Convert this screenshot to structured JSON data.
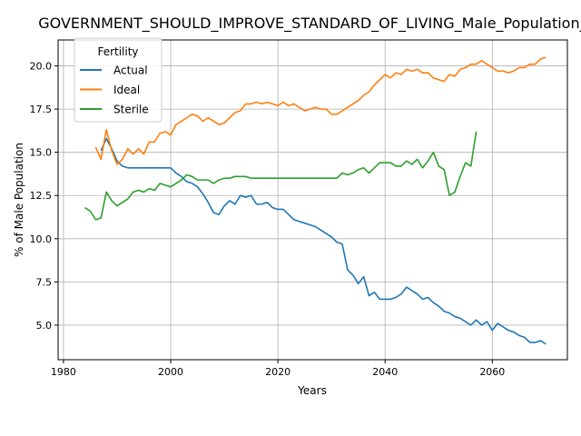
{
  "chart_data": {
    "type": "line",
    "title": "GOVERNMENT_SHOULD_IMPROVE_STANDARD_OF_LIVING_Male_Population_sc",
    "xlabel": "Years",
    "ylabel": "% of Male Population",
    "xlim": [
      1979,
      2074
    ],
    "ylim": [
      3.0,
      21.5
    ],
    "xticks": [
      1980,
      2000,
      2020,
      2040,
      2060
    ],
    "yticks": [
      5.0,
      7.5,
      10.0,
      12.5,
      15.0,
      17.5,
      20.0
    ],
    "xtick_labels": [
      "1980",
      "2000",
      "2020",
      "2040",
      "2060"
    ],
    "ytick_labels": [
      "5.0",
      "7.5",
      "10.0",
      "12.5",
      "15.0",
      "17.5",
      "20.0"
    ],
    "grid": true,
    "legend": {
      "title": "Fertility",
      "placement": "top-left"
    },
    "series": [
      {
        "name": "Actual",
        "color": "#1f77b4",
        "x": [
          1987,
          1988,
          1989,
          1990,
          1991,
          1992,
          1993,
          1994,
          1995,
          1996,
          1997,
          1998,
          1999,
          2000,
          2001,
          2002,
          2003,
          2004,
          2005,
          2006,
          2007,
          2008,
          2009,
          2010,
          2011,
          2012,
          2013,
          2014,
          2015,
          2016,
          2017,
          2018,
          2019,
          2020,
          2021,
          2022,
          2023,
          2024,
          2025,
          2026,
          2027,
          2028,
          2029,
          2030,
          2031,
          2032,
          2033,
          2034,
          2035,
          2036,
          2037,
          2038,
          2039,
          2040,
          2041,
          2042,
          2043,
          2044,
          2045,
          2046,
          2047,
          2048,
          2049,
          2050,
          2051,
          2052,
          2053,
          2054,
          2055,
          2056,
          2057,
          2058,
          2059,
          2060,
          2061,
          2062,
          2063,
          2064,
          2065,
          2066,
          2067,
          2068,
          2069,
          2070
        ],
        "y": [
          15.1,
          15.8,
          15.2,
          14.5,
          14.2,
          14.1,
          14.1,
          14.1,
          14.1,
          14.1,
          14.1,
          14.1,
          14.1,
          14.1,
          13.8,
          13.6,
          13.3,
          13.2,
          13.0,
          12.6,
          12.1,
          11.5,
          11.4,
          11.9,
          12.2,
          12.0,
          12.5,
          12.4,
          12.5,
          12.0,
          12.0,
          12.1,
          11.8,
          11.7,
          11.7,
          11.4,
          11.1,
          11.0,
          10.9,
          10.8,
          10.7,
          10.5,
          10.3,
          10.1,
          9.8,
          9.7,
          8.2,
          7.9,
          7.4,
          7.8,
          6.7,
          6.9,
          6.5,
          6.5,
          6.5,
          6.6,
          6.8,
          7.2,
          7.0,
          6.8,
          6.5,
          6.6,
          6.3,
          6.1,
          5.8,
          5.7,
          5.5,
          5.4,
          5.2,
          5.0,
          5.3,
          5.0,
          5.2,
          4.7,
          5.1,
          4.9,
          4.7,
          4.6,
          4.4,
          4.3,
          4.0,
          4.0,
          4.1,
          3.9
        ]
      },
      {
        "name": "Ideal",
        "color": "#ff7f0e",
        "x": [
          1986,
          1987,
          1988,
          1989,
          1990,
          1991,
          1992,
          1993,
          1994,
          1995,
          1996,
          1997,
          1998,
          1999,
          2000,
          2001,
          2002,
          2003,
          2004,
          2005,
          2006,
          2007,
          2008,
          2009,
          2010,
          2011,
          2012,
          2013,
          2014,
          2015,
          2016,
          2017,
          2018,
          2019,
          2020,
          2021,
          2022,
          2023,
          2024,
          2025,
          2026,
          2027,
          2028,
          2029,
          2030,
          2031,
          2032,
          2033,
          2034,
          2035,
          2036,
          2037,
          2038,
          2039,
          2040,
          2041,
          2042,
          2043,
          2044,
          2045,
          2046,
          2047,
          2048,
          2049,
          2050,
          2051,
          2052,
          2053,
          2054,
          2055,
          2056,
          2057,
          2058,
          2059,
          2060,
          2061,
          2062,
          2063,
          2064,
          2065,
          2066,
          2067,
          2068,
          2069,
          2070
        ],
        "y": [
          15.3,
          14.6,
          16.3,
          15.1,
          14.3,
          14.6,
          15.2,
          14.9,
          15.2,
          14.9,
          15.6,
          15.6,
          16.1,
          16.2,
          16.0,
          16.6,
          16.8,
          17.0,
          17.2,
          17.1,
          16.8,
          17.0,
          16.8,
          16.6,
          16.7,
          17.0,
          17.3,
          17.4,
          17.8,
          17.8,
          17.9,
          17.8,
          17.9,
          17.8,
          17.7,
          17.9,
          17.7,
          17.8,
          17.6,
          17.4,
          17.5,
          17.6,
          17.5,
          17.5,
          17.2,
          17.2,
          17.4,
          17.6,
          17.8,
          18.0,
          18.3,
          18.5,
          18.9,
          19.2,
          19.5,
          19.3,
          19.6,
          19.5,
          19.8,
          19.7,
          19.8,
          19.6,
          19.6,
          19.3,
          19.2,
          19.1,
          19.5,
          19.4,
          19.8,
          19.9,
          20.1,
          20.1,
          20.3,
          20.1,
          19.9,
          19.7,
          19.7,
          19.6,
          19.7,
          19.9,
          19.9,
          20.1,
          20.1,
          20.4,
          20.5
        ]
      },
      {
        "name": "Sterile",
        "color": "#2ca02c",
        "x": [
          1984,
          1985,
          1986,
          1987,
          1988,
          1989,
          1990,
          1991,
          1992,
          1993,
          1994,
          1995,
          1996,
          1997,
          1998,
          1999,
          2000,
          2001,
          2002,
          2003,
          2004,
          2005,
          2006,
          2007,
          2008,
          2009,
          2010,
          2011,
          2012,
          2013,
          2014,
          2015,
          2016,
          2017,
          2018,
          2019,
          2020,
          2021,
          2022,
          2023,
          2024,
          2025,
          2026,
          2027,
          2028,
          2029,
          2030,
          2031,
          2032,
          2033,
          2034,
          2035,
          2036,
          2037,
          2038,
          2039,
          2040,
          2041,
          2042,
          2043,
          2044,
          2045,
          2046,
          2047,
          2048,
          2049,
          2050,
          2051,
          2052,
          2053,
          2054,
          2055,
          2056,
          2057
        ],
        "y": [
          11.8,
          11.6,
          11.1,
          11.2,
          12.7,
          12.2,
          11.9,
          12.1,
          12.3,
          12.7,
          12.8,
          12.7,
          12.9,
          12.8,
          13.2,
          13.1,
          13.0,
          13.2,
          13.4,
          13.7,
          13.6,
          13.4,
          13.4,
          13.4,
          13.2,
          13.4,
          13.5,
          13.5,
          13.6,
          13.6,
          13.6,
          13.5,
          13.5,
          13.5,
          13.5,
          13.5,
          13.5,
          13.5,
          13.5,
          13.5,
          13.5,
          13.5,
          13.5,
          13.5,
          13.5,
          13.5,
          13.5,
          13.5,
          13.8,
          13.7,
          13.8,
          14.0,
          14.1,
          13.8,
          14.1,
          14.4,
          14.4,
          14.4,
          14.2,
          14.2,
          14.5,
          14.3,
          14.6,
          14.1,
          14.5,
          15.0,
          14.2,
          14.0,
          12.5,
          12.7,
          13.6,
          14.4,
          14.2,
          16.2
        ]
      }
    ]
  }
}
